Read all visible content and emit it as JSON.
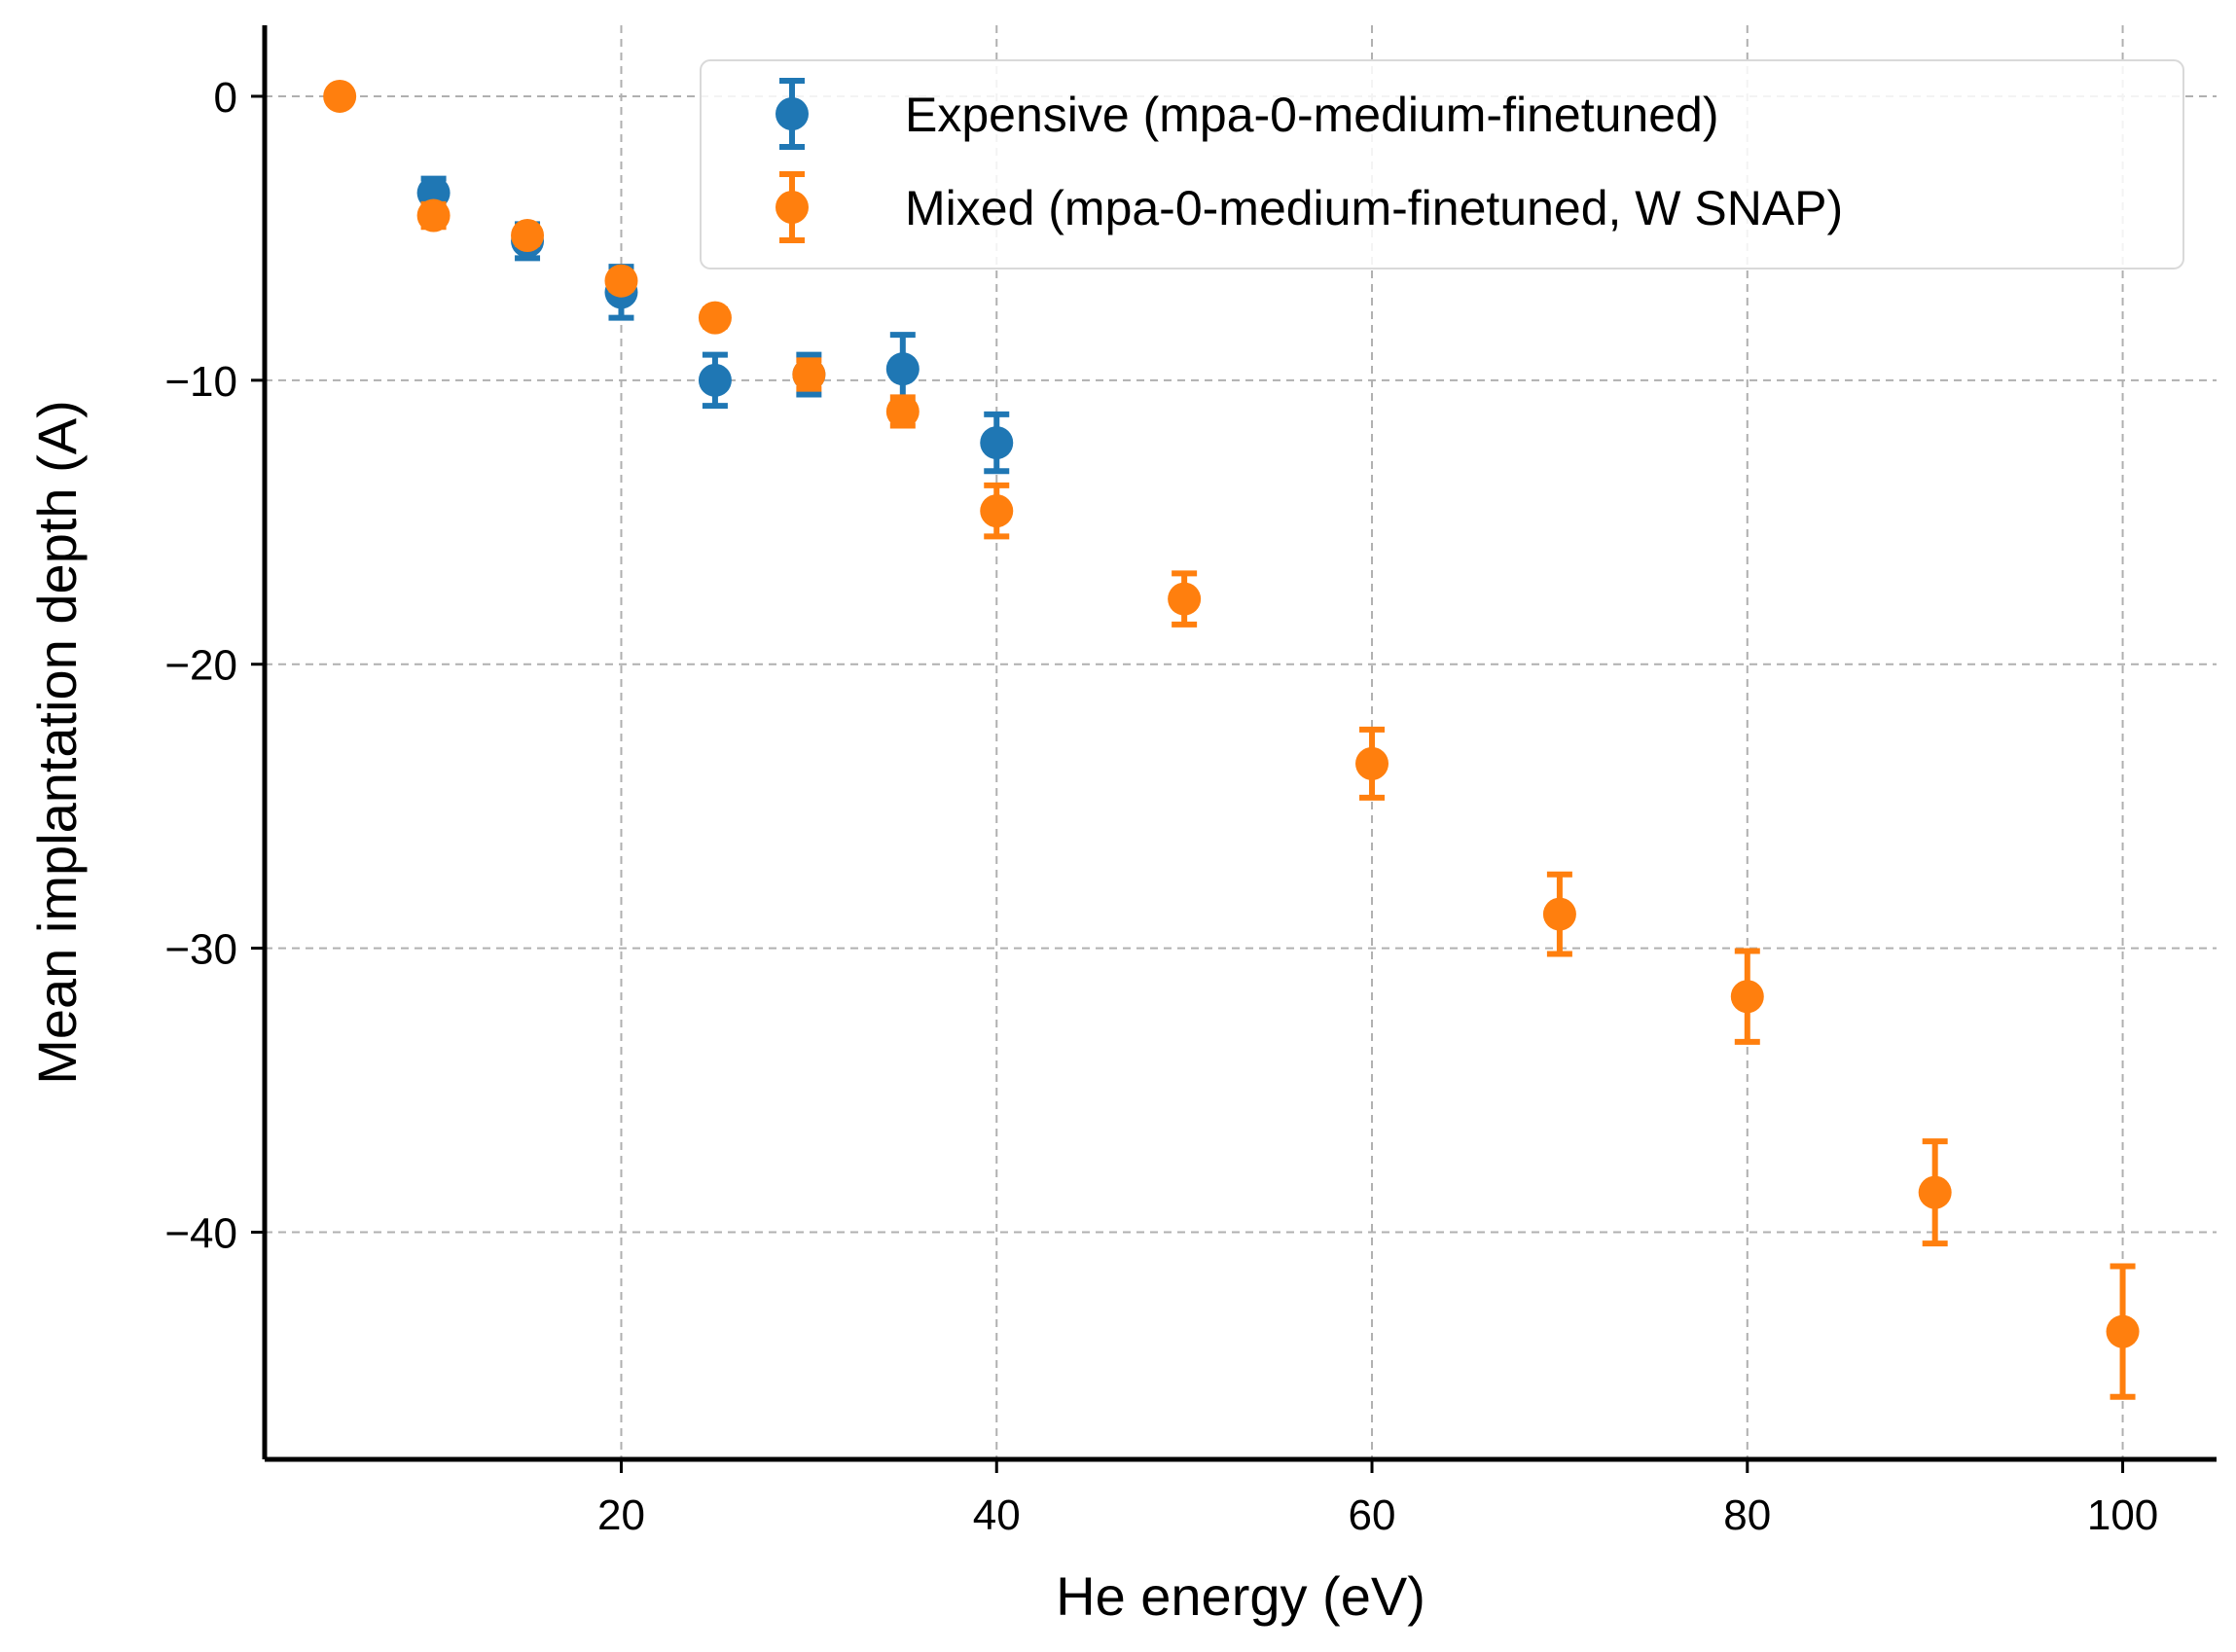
{
  "chart_data": {
    "type": "scatter",
    "xlabel": "He energy (eV)",
    "ylabel": "Mean implantation depth (A)",
    "xlim": [
      1,
      105
    ],
    "ylim": [
      -48,
      2.5
    ],
    "xticks": [
      20,
      40,
      60,
      80,
      100
    ],
    "xtick_labels": [
      "20",
      "40",
      "60",
      "80",
      "100"
    ],
    "yticks": [
      0,
      -10,
      -20,
      -30,
      -40
    ],
    "ytick_labels": [
      "0",
      "−10",
      "−20",
      "−30",
      "−40"
    ],
    "grid": true,
    "legend_position": "top-right",
    "series": [
      {
        "name": "Expensive (mpa-0-medium-finetuned)",
        "color": "#1f77b4",
        "x": [
          10,
          15,
          20,
          25,
          30,
          35,
          40
        ],
        "y": [
          -3.4,
          -5.1,
          -6.9,
          -10.0,
          -9.8,
          -9.6,
          -12.2
        ],
        "yerr": [
          0.5,
          0.6,
          0.9,
          0.9,
          0.7,
          1.2,
          1.0
        ]
      },
      {
        "name": "Mixed (mpa-0-medium-finetuned, W SNAP)",
        "color": "#ff7f0e",
        "x": [
          5,
          10,
          15,
          20,
          25,
          30,
          35,
          40,
          50,
          60,
          70,
          80,
          90,
          100
        ],
        "y": [
          0,
          -4.2,
          -4.9,
          -6.5,
          -7.8,
          -9.8,
          -11.1,
          -14.6,
          -17.7,
          -23.5,
          -28.8,
          -31.7,
          -38.6,
          -43.5
        ],
        "yerr": [
          0.0,
          0.4,
          0.3,
          0.3,
          0.3,
          0.5,
          0.5,
          0.9,
          0.9,
          1.2,
          1.4,
          1.6,
          1.8,
          2.3
        ]
      }
    ]
  }
}
